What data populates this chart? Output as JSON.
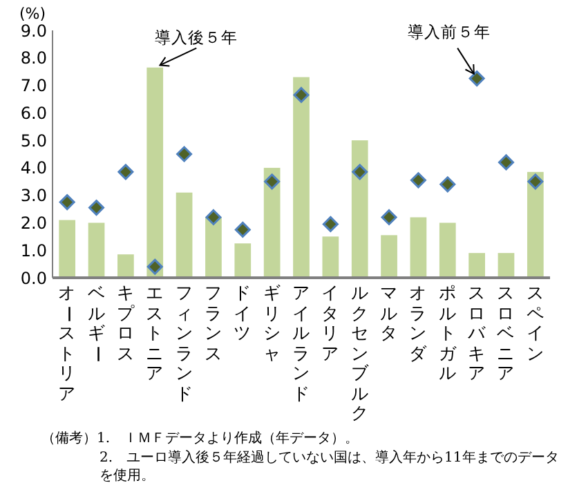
{
  "chart_data": {
    "type": "bar",
    "ylabel": "(%)",
    "categories": [
      "オーストリア",
      "ベルギー",
      "キプロス",
      "エストニア",
      "フィンランド",
      "フランス",
      "ドイツ",
      "ギリシャ",
      "アイルランド",
      "イタリア",
      "ルクセンブルク",
      "マルタ",
      "オランダ",
      "ポルトガル",
      "スロバキア",
      "スロベニア",
      "スペイン"
    ],
    "series": [
      {
        "type": "bar",
        "color": "#c3d69b",
        "values": [
          2.1,
          2.0,
          0.85,
          7.65,
          3.1,
          2.2,
          1.25,
          4.0,
          7.3,
          1.5,
          5.0,
          1.55,
          2.2,
          2.0,
          0.9,
          0.9,
          3.85
        ]
      },
      {
        "type": "scatter",
        "marker": "diamond",
        "color": "#4f6228",
        "values": [
          2.75,
          2.55,
          3.85,
          0.4,
          4.5,
          2.2,
          1.75,
          3.5,
          6.65,
          1.95,
          3.85,
          2.2,
          3.55,
          3.4,
          7.25,
          4.2,
          3.5
        ]
      }
    ],
    "ylim": [
      0,
      9
    ],
    "yticks": [
      {
        "value": 0,
        "label": "0.0"
      },
      {
        "value": 1,
        "label": "1.0"
      },
      {
        "value": 2,
        "label": "2.0"
      },
      {
        "value": 3,
        "label": "3.0"
      },
      {
        "value": 4,
        "label": "4.0"
      },
      {
        "value": 5,
        "label": "5.0"
      },
      {
        "value": 6,
        "label": "6.0"
      },
      {
        "value": 7,
        "label": "7.0"
      },
      {
        "value": 8,
        "label": "8.0"
      },
      {
        "value": 9,
        "label": "9.0"
      }
    ],
    "grid": false,
    "legend": false,
    "annotations": [
      {
        "text": "導入後５年",
        "x": "エストニア",
        "y": 7.65
      },
      {
        "text": "導入前５年",
        "x": "スロバキア",
        "y": 7.25
      },
      "（備考）1.　ＩＭＦデータより作成（年データ）。",
      "2.　ユーロ導入後５年経過していない国は、導入年から11年までのデータを使用。"
    ]
  }
}
